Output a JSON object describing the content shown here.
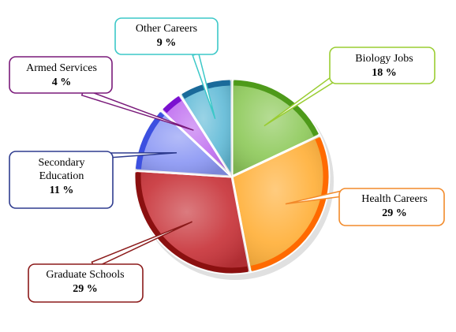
{
  "chart_data": {
    "type": "pie",
    "title": "",
    "slices": [
      {
        "label": "Biology Jobs",
        "pct_label": "18 %",
        "value": 18,
        "color": "#8fca5c",
        "rim": "#4e9a1a",
        "border": "#9acd32"
      },
      {
        "label": "Health Careers",
        "pct_label": "29 %",
        "value": 29,
        "color": "#ffb03a",
        "rim": "#ff6a00",
        "border": "#f28a2a"
      },
      {
        "label": "Graduate Schools",
        "pct_label": "29 %",
        "value": 29,
        "color": "#c8343a",
        "rim": "#8b1010",
        "border": "#8b1a1a"
      },
      {
        "label": "Secondary Education",
        "label_lines": [
          "Secondary",
          "Education"
        ],
        "pct_label": "11 %",
        "value": 11,
        "color": "#8c98f4",
        "rim": "#3c50e0",
        "border": "#2f3c8f"
      },
      {
        "label": "Armed Services",
        "pct_label": "4 %",
        "value": 4,
        "color": "#c070f0",
        "rim": "#7a10d0",
        "border": "#7a1a7a"
      },
      {
        "label": "Other Careers",
        "pct_label": "9 %",
        "value": 9,
        "color": "#64bcd8",
        "rim": "#1a6a9a",
        "border": "#3cc8c8"
      }
    ]
  }
}
